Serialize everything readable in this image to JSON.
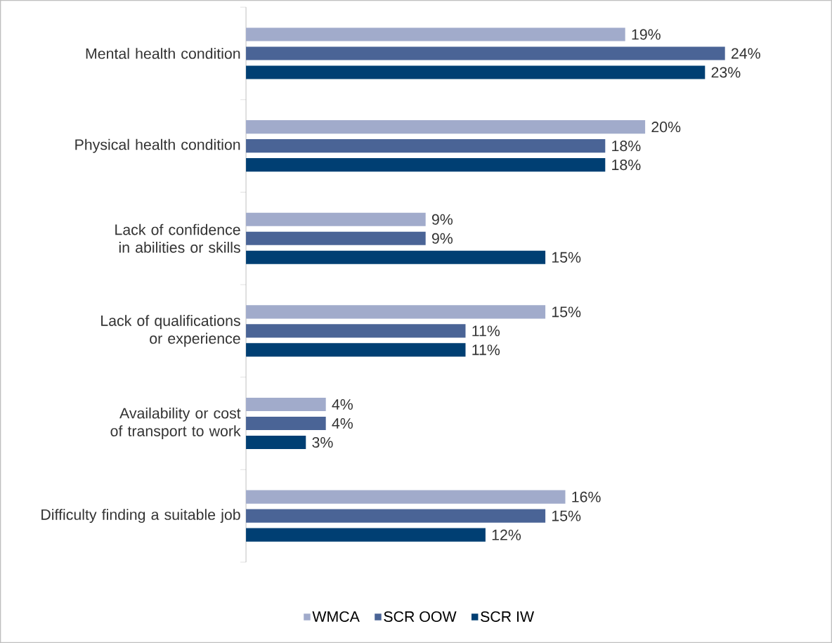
{
  "chart_data": {
    "type": "bar",
    "orientation": "horizontal",
    "tick_labels": "y",
    "legend": "bottom",
    "data_labels": true,
    "categories": [
      "Mental health condition",
      "Physical health condition",
      "Lack of confidence in abilities or skills",
      "Lack of qualifications or experience",
      "Availability or cost of transport to work",
      "Difficulty finding a suitable job"
    ],
    "series": [
      {
        "name": "WMCA",
        "color": "#a1abcb",
        "values": [
          19,
          20,
          9,
          15,
          4,
          16
        ],
        "value_labels": [
          "19%",
          "20%",
          "9%",
          "15%",
          "4%",
          "16%"
        ]
      },
      {
        "name": "SCR OOW",
        "color": "#4a6496",
        "values": [
          24,
          18,
          9,
          11,
          4,
          15
        ],
        "value_labels": [
          "24%",
          "18%",
          "9%",
          "11%",
          "4%",
          "15%"
        ]
      },
      {
        "name": "SCR IW",
        "color": "#003f73",
        "values": [
          23,
          18,
          15,
          11,
          3,
          12
        ],
        "value_labels": [
          "23%",
          "18%",
          "15%",
          "11%",
          "3%",
          "12%"
        ]
      }
    ]
  }
}
